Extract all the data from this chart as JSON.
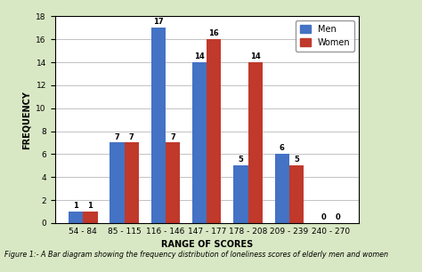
{
  "categories": [
    "54 - 84",
    "85 - 115",
    "116 - 146",
    "147 - 177",
    "178 - 208",
    "209 - 239",
    "240 - 270"
  ],
  "men_values": [
    1,
    7,
    17,
    14,
    5,
    6,
    0
  ],
  "women_values": [
    1,
    7,
    7,
    16,
    14,
    5,
    0
  ],
  "men_color": "#4472C4",
  "women_color": "#C0392B",
  "xlabel": "RANGE OF SCORES",
  "ylabel": "FREQUENCY",
  "ylim": [
    0,
    18
  ],
  "yticks": [
    0,
    2,
    4,
    6,
    8,
    10,
    12,
    14,
    16,
    18
  ],
  "legend_men": "Men",
  "legend_women": "Women",
  "fig_background_color": "#d9e8c4",
  "chart_background_color": "#ffffff",
  "caption": "Figure 1:- A Bar diagram showing the frequency distribution of loneliness scores of elderly men and women",
  "bar_width": 0.35,
  "axis_label_fontsize": 7,
  "tick_fontsize": 6.5,
  "value_fontsize": 6,
  "legend_fontsize": 7,
  "caption_fontsize": 5.8
}
